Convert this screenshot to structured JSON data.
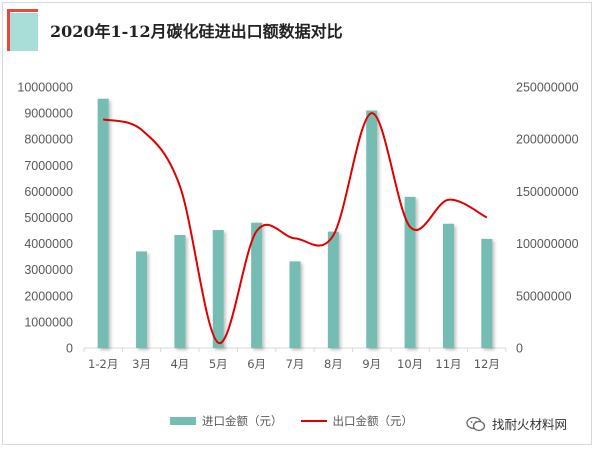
{
  "title": "2020年1-12月碳化硅进出口额数据对比",
  "chart_data": {
    "type": "bar",
    "categories": [
      "1-2月",
      "3月",
      "4月",
      "5月",
      "6月",
      "7月",
      "8月",
      "9月",
      "10月",
      "11月",
      "12月"
    ],
    "series": [
      {
        "name": "进口金额（元）",
        "type": "bar",
        "axis": "left",
        "color": "#74bdb3",
        "values": [
          9550000,
          3700000,
          4330000,
          4520000,
          4800000,
          3320000,
          4460000,
          9100000,
          5790000,
          4760000,
          4180000
        ]
      },
      {
        "name": "出口金额（元）",
        "type": "line",
        "axis": "right",
        "color": "#e00000",
        "values": [
          219000000,
          209000000,
          155000000,
          5000000,
          112000000,
          105000000,
          108000000,
          225000000,
          116000000,
          142000000,
          125000000
        ]
      }
    ],
    "y_left": {
      "min": 0,
      "max": 10000000,
      "ticks": [
        0,
        1000000,
        2000000,
        3000000,
        4000000,
        5000000,
        6000000,
        7000000,
        8000000,
        9000000,
        10000000
      ]
    },
    "y_right": {
      "min": 0,
      "max": 250000000,
      "ticks": [
        0,
        50000000,
        100000000,
        150000000,
        200000000,
        250000000
      ]
    },
    "legend_position": "bottom"
  },
  "legend": {
    "bar_label": "进口金额（元）",
    "line_label": "出口金额（元）"
  },
  "watermark": {
    "text": "找耐火材料网"
  },
  "colors": {
    "bar": "#74bdb3",
    "line": "#e00000",
    "accent": "#e8473f",
    "accent_light": "#a8ded7"
  }
}
